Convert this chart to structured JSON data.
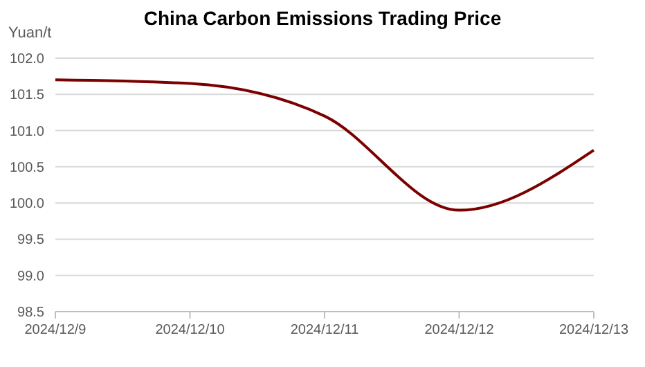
{
  "chart_data": {
    "type": "line",
    "title": "China Carbon Emissions Trading Price",
    "ylabel": "Yuan/t",
    "categories": [
      "2024/12/9",
      "2024/12/10",
      "2024/12/11",
      "2024/12/12",
      "2024/12/13"
    ],
    "series": [
      {
        "color": "#7b0000",
        "values": [
          101.7,
          101.65,
          101.2,
          99.9,
          100.73
        ]
      }
    ],
    "ylim": [
      98.5,
      102
    ],
    "yticks": [
      {
        "value": 98.5,
        "label": "98.5"
      },
      {
        "value": 99,
        "label": "99.0"
      },
      {
        "value": 99.5,
        "label": "99.5"
      },
      {
        "value": 100,
        "label": "100.0"
      },
      {
        "value": 100.5,
        "label": "100.5"
      },
      {
        "value": 101,
        "label": "101.0"
      },
      {
        "value": 101.5,
        "label": "101.5"
      },
      {
        "value": 102,
        "label": "102.0"
      }
    ],
    "grid": "y",
    "marker": "none",
    "line_style": "solid"
  }
}
